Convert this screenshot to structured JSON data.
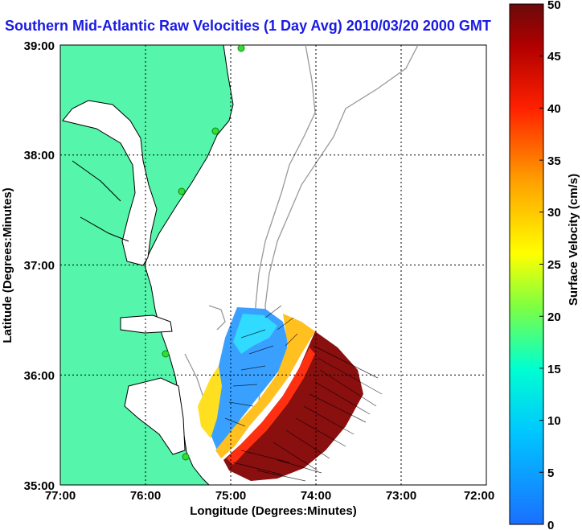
{
  "chart_data": {
    "type": "heatmap",
    "title": "Southern Mid-Atlantic Raw Velocities (1 Day Avg) 2010/03/20 2000 GMT",
    "xlabel": "Longitude (Degrees:Minutes)",
    "ylabel": "Latitude (Degrees:Minutes)",
    "xlim": [
      -77,
      -72
    ],
    "ylim": [
      35,
      39
    ],
    "xticks": [
      "77:00",
      "76:00",
      "75:00",
      "74:00",
      "73:00",
      "72:00"
    ],
    "yticks": [
      "35:00",
      "36:00",
      "37:00",
      "38:00",
      "39:00"
    ],
    "grid": true,
    "colorbar": {
      "label": "Surface Velocity (cm/s)",
      "range": [
        0,
        50
      ],
      "ticks": [
        "0",
        "5",
        "10",
        "15",
        "20",
        "25",
        "30",
        "35",
        "40",
        "45",
        "50"
      ],
      "colors": [
        "#1a6fff",
        "#00c8ff",
        "#00ffd0",
        "#80ff40",
        "#ffff00",
        "#ffa000",
        "#ff2000",
        "#b00000",
        "#6a0a0a"
      ]
    },
    "stations": [
      {
        "lon": -74.9,
        "lat": 39.0
      },
      {
        "lon": -75.3,
        "lat": 38.2
      },
      {
        "lon": -75.5,
        "lat": 37.65
      },
      {
        "lon": -75.7,
        "lat": 36.2
      },
      {
        "lon": -75.5,
        "lat": 35.25
      }
    ],
    "colors": {
      "land": "#55f5ab",
      "coast": "#000000",
      "bathymetry": "#999999",
      "station": "#33cc33"
    }
  }
}
